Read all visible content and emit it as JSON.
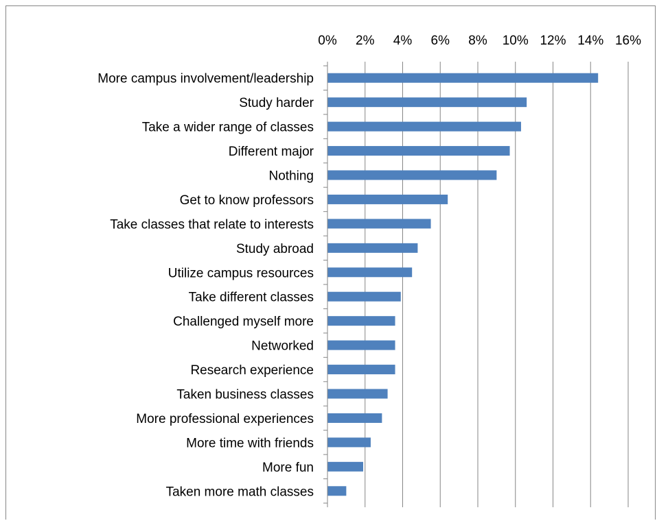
{
  "chart_data": {
    "type": "bar",
    "orientation": "horizontal",
    "title": "",
    "xlabel": "",
    "ylabel": "",
    "xlim": [
      0,
      16
    ],
    "x_tick_labels": [
      "0%",
      "2%",
      "4%",
      "6%",
      "8%",
      "10%",
      "12%",
      "14%",
      "16%"
    ],
    "x_axis_position": "top",
    "grid": true,
    "legend": "none",
    "bar_color": "#4F81BD",
    "categories": [
      "More campus involvement/leadership",
      "Study harder",
      "Take a wider range of classes",
      "Different major",
      "Nothing",
      "Get to know professors",
      "Take classes that relate to interests",
      "Study abroad",
      "Utilize campus resources",
      "Take different classes",
      "Challenged myself more",
      "Networked",
      "Research experience",
      "Taken business classes",
      "More professional experiences",
      "More time with friends",
      "More fun",
      "Taken more math classes"
    ],
    "values": [
      14.4,
      10.6,
      10.3,
      9.7,
      9.0,
      6.4,
      5.5,
      4.8,
      4.5,
      3.9,
      3.6,
      3.6,
      3.6,
      3.2,
      2.9,
      2.3,
      1.9,
      1.0
    ]
  }
}
